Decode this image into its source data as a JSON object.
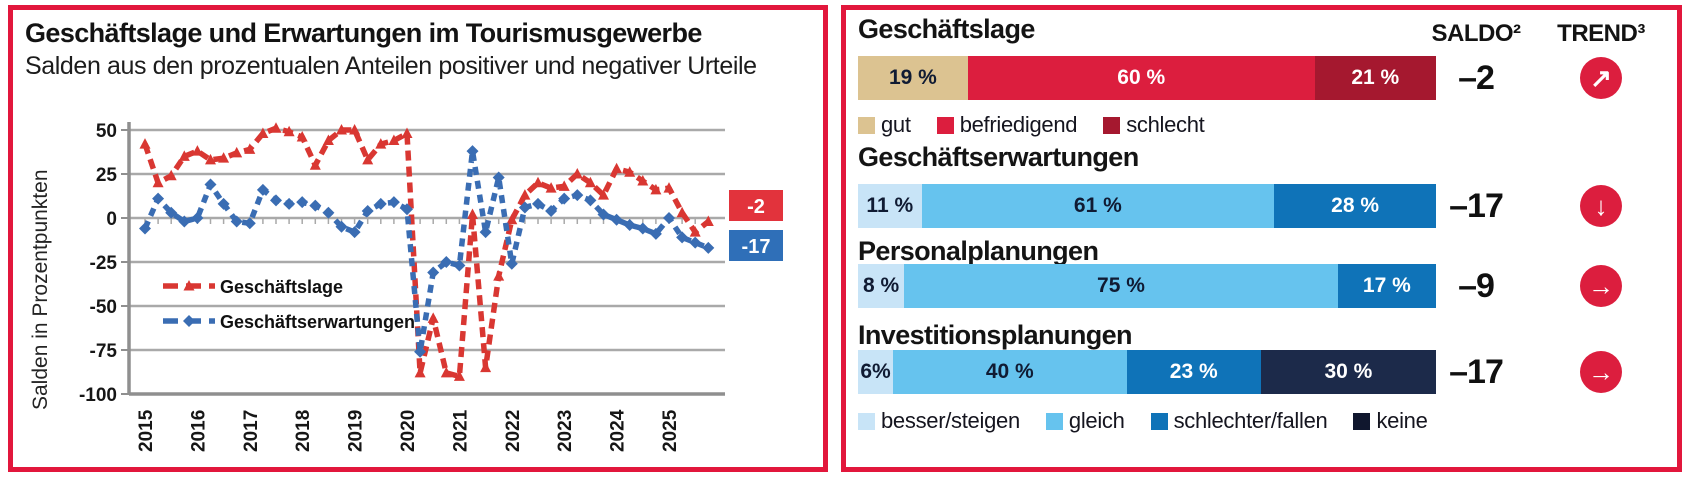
{
  "left_panel": {
    "title": "Geschäftslage und Erwartungen im Tourismusgewerbe",
    "subtitle": "Salden aus den prozentualen Anteilen positiver und negativer Urteile",
    "ylabel": "Salden in Prozentpunkten",
    "legend": [
      {
        "name": "Geschäftslage",
        "color": "#d93732",
        "marker": "triangle"
      },
      {
        "name": "Geschäftserwartungen",
        "color": "#3a6db3",
        "marker": "diamond"
      }
    ],
    "end_labels": [
      {
        "text": "-2",
        "color": "#e2333c"
      },
      {
        "text": "-17",
        "color": "#2f6fb8"
      }
    ]
  },
  "chart_data": {
    "type": "line",
    "title": "Geschäftslage und Erwartungen im Tourismusgewerbe",
    "ylabel": "Salden in Prozentpunkten",
    "ylim": [
      -100,
      50
    ],
    "yticks": [
      50,
      25,
      0,
      -25,
      -50,
      -75,
      -100
    ],
    "x_years": [
      "2015",
      "2016",
      "2017",
      "2018",
      "2019",
      "2020",
      "2021",
      "2022",
      "2023",
      "2024",
      "2025"
    ],
    "frequency": "quarterly",
    "grid": true,
    "legend_position": "inside-left",
    "series": [
      {
        "name": "Geschäftslage",
        "color": "#d93732",
        "marker": "triangle",
        "values": [
          42,
          20,
          24,
          35,
          38,
          33,
          34,
          37,
          39,
          48,
          51,
          49,
          46,
          30,
          44,
          50,
          50,
          33,
          42,
          44,
          48,
          -88,
          -57,
          -88,
          -90,
          2,
          -85,
          -33,
          -1,
          13,
          20,
          17,
          18,
          25,
          20,
          13,
          28,
          26,
          21,
          16,
          17,
          3,
          -8,
          -2
        ]
      },
      {
        "name": "Geschäftserwartungen",
        "color": "#3a6db3",
        "marker": "diamond",
        "values": [
          -6,
          11,
          3,
          -2,
          0,
          19,
          8,
          -2,
          -3,
          16,
          10,
          8,
          9,
          7,
          3,
          -5,
          -8,
          4,
          8,
          9,
          5,
          -76,
          -31,
          -25,
          -27,
          38,
          -8,
          23,
          -26,
          6,
          8,
          4,
          11,
          13,
          10,
          2,
          -1,
          -4,
          -6,
          -9,
          0,
          -11,
          -14,
          -17
        ]
      }
    ]
  },
  "right_panel": {
    "saldo_header": "SALDO²",
    "trend_header": "TREND³",
    "rows": [
      {
        "label": "Geschäftslage",
        "saldo": "–2",
        "trend": "up-right",
        "segments": [
          {
            "label": "19 %",
            "value": 19,
            "color": "#dcc391",
            "text": "#101b33"
          },
          {
            "label": "60 %",
            "value": 60,
            "color": "#dc1e3e",
            "text": "#ffffff"
          },
          {
            "label": "21 %",
            "value": 21,
            "color": "#a5182f",
            "text": "#ffffff"
          }
        ]
      },
      {
        "label": "Geschäftserwartungen",
        "saldo": "–17",
        "trend": "down",
        "segments": [
          {
            "label": "11 %",
            "value": 11,
            "color": "#c8e4f7",
            "text": "#101b33"
          },
          {
            "label": "61 %",
            "value": 61,
            "color": "#66c3ee",
            "text": "#101b33"
          },
          {
            "label": "28 %",
            "value": 28,
            "color": "#0f73b8",
            "text": "#ffffff"
          }
        ]
      },
      {
        "label": "Personalplanungen",
        "saldo": "–9",
        "trend": "right",
        "segments": [
          {
            "label": "8 %",
            "value": 8,
            "color": "#c8e4f7",
            "text": "#101b33"
          },
          {
            "label": "75 %",
            "value": 75,
            "color": "#66c3ee",
            "text": "#101b33"
          },
          {
            "label": "17 %",
            "value": 17,
            "color": "#0f73b8",
            "text": "#ffffff"
          }
        ]
      },
      {
        "label": "Investitionsplanungen",
        "saldo": "–17",
        "trend": "right",
        "segments": [
          {
            "label": "6%",
            "value": 6,
            "color": "#c8e4f7",
            "text": "#101b33"
          },
          {
            "label": "40 %",
            "value": 40,
            "color": "#66c3ee",
            "text": "#101b33"
          },
          {
            "label": "23 %",
            "value": 23,
            "color": "#0f73b8",
            "text": "#ffffff"
          },
          {
            "label": "30 %",
            "value": 30,
            "color": "#1c2a4a",
            "text": "#ffffff"
          }
        ]
      }
    ],
    "legend_top": [
      {
        "label": "gut",
        "color": "#dcc391"
      },
      {
        "label": "befriedigend",
        "color": "#dc1e3e"
      },
      {
        "label": "schlecht",
        "color": "#a5182f"
      }
    ],
    "legend_bottom": [
      {
        "label": "besser/steigen",
        "color": "#c8e4f7"
      },
      {
        "label": "gleich",
        "color": "#66c3ee"
      },
      {
        "label": "schlechter/fallen",
        "color": "#0f73b8"
      },
      {
        "label": "keine",
        "color": "#10172e"
      }
    ]
  },
  "colors": {
    "panel_border": "#e2173c",
    "grid": "#a9a9a9",
    "axis": "#8f8f8f",
    "trend_circle": "#dc1e3e"
  }
}
